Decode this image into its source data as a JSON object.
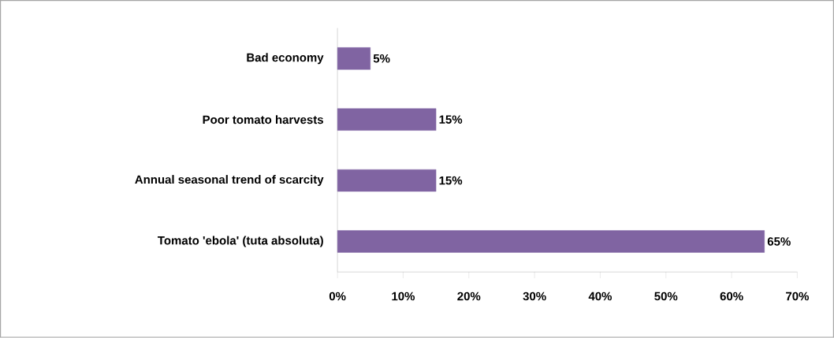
{
  "chart_data": {
    "type": "bar",
    "orientation": "horizontal",
    "categories": [
      "Bad economy",
      "Poor tomato harvests",
      "Annual seasonal trend of scarcity",
      "Tomato 'ebola' (tuta absoluta)"
    ],
    "values": [
      5,
      15,
      15,
      65
    ],
    "value_labels": [
      "5%",
      "15%",
      "15%",
      "65%"
    ],
    "color": "#8064a2",
    "xlim": [
      0,
      70
    ],
    "xticks": [
      {
        "value": 0,
        "label": "0%"
      },
      {
        "value": 10,
        "label": "10%"
      },
      {
        "value": 20,
        "label": "20%"
      },
      {
        "value": 30,
        "label": "30%"
      },
      {
        "value": 40,
        "label": "40%"
      },
      {
        "value": 50,
        "label": "50%"
      },
      {
        "value": 60,
        "label": "60%"
      },
      {
        "value": 70,
        "label": "70%"
      }
    ]
  }
}
